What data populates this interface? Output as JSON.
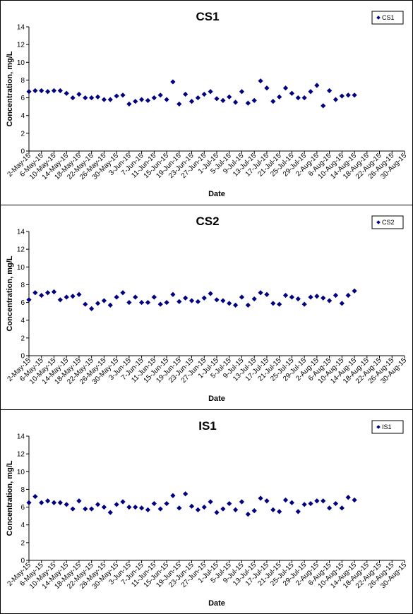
{
  "chart_data": [
    {
      "type": "scatter",
      "title": "CS1",
      "xlabel": "Date",
      "ylabel": "Concentration, mg/L",
      "ylim": [
        0,
        14
      ],
      "yticks": [
        0,
        2,
        4,
        6,
        8,
        10,
        12,
        14
      ],
      "grid": false,
      "legend_position": "top-right",
      "x_tick_labels": [
        "2-May-15",
        "6-May-15",
        "10-May-15",
        "14-May-15",
        "18-May-15",
        "22-May-15",
        "26-May-15",
        "30-May-15",
        "3-Jun-15",
        "7-Jun-15",
        "11-Jun-15",
        "15-Jun-15",
        "19-Jun-15",
        "23-Jun-15",
        "27-Jun-15",
        "1-Jul-15",
        "5-Jul-15",
        "9-Jul-15",
        "13-Jul-15",
        "17-Jul-15",
        "21-Jul-15",
        "25-Jul-15",
        "29-Jul-15",
        "2-Aug-15",
        "6-Aug-15",
        "10-Aug-15",
        "14-Aug-15",
        "18-Aug-15",
        "22-Aug-15",
        "26-Aug-15",
        "30-Aug-15"
      ],
      "series": [
        {
          "name": "CS1",
          "color": "#000080",
          "points": [
            [
              "2-May-15",
              6.7
            ],
            [
              "4-May-15",
              6.8
            ],
            [
              "6-May-15",
              6.8
            ],
            [
              "8-May-15",
              6.7
            ],
            [
              "10-May-15",
              6.8
            ],
            [
              "12-May-15",
              6.8
            ],
            [
              "14-May-15",
              6.5
            ],
            [
              "16-May-15",
              6.0
            ],
            [
              "18-May-15",
              6.4
            ],
            [
              "20-May-15",
              6.0
            ],
            [
              "22-May-15",
              6.0
            ],
            [
              "24-May-15",
              6.1
            ],
            [
              "26-May-15",
              5.8
            ],
            [
              "28-May-15",
              5.8
            ],
            [
              "30-May-15",
              6.2
            ],
            [
              "1-Jun-15",
              6.3
            ],
            [
              "3-Jun-15",
              5.3
            ],
            [
              "5-Jun-15",
              5.6
            ],
            [
              "7-Jun-15",
              5.8
            ],
            [
              "9-Jun-15",
              5.7
            ],
            [
              "11-Jun-15",
              6.0
            ],
            [
              "13-Jun-15",
              6.3
            ],
            [
              "15-Jun-15",
              5.8
            ],
            [
              "17-Jun-15",
              7.8
            ],
            [
              "19-Jun-15",
              5.3
            ],
            [
              "21-Jun-15",
              6.4
            ],
            [
              "23-Jun-15",
              5.6
            ],
            [
              "25-Jun-15",
              6.0
            ],
            [
              "27-Jun-15",
              6.4
            ],
            [
              "29-Jun-15",
              6.7
            ],
            [
              "1-Jul-15",
              5.9
            ],
            [
              "3-Jul-15",
              5.7
            ],
            [
              "5-Jul-15",
              6.1
            ],
            [
              "7-Jul-15",
              5.5
            ],
            [
              "9-Jul-15",
              6.7
            ],
            [
              "11-Jul-15",
              5.4
            ],
            [
              "13-Jul-15",
              5.7
            ],
            [
              "15-Jul-15",
              7.9
            ],
            [
              "17-Jul-15",
              7.1
            ],
            [
              "19-Jul-15",
              5.6
            ],
            [
              "21-Jul-15",
              6.1
            ],
            [
              "23-Jul-15",
              7.1
            ],
            [
              "25-Jul-15",
              6.5
            ],
            [
              "27-Jul-15",
              6.0
            ],
            [
              "29-Jul-15",
              6.0
            ],
            [
              "31-Jul-15",
              6.7
            ],
            [
              "2-Aug-15",
              7.4
            ],
            [
              "4-Aug-15",
              5.1
            ],
            [
              "6-Aug-15",
              6.8
            ],
            [
              "8-Aug-15",
              5.8
            ],
            [
              "10-Aug-15",
              6.2
            ],
            [
              "12-Aug-15",
              6.3
            ],
            [
              "14-Aug-15",
              6.3
            ]
          ]
        }
      ]
    },
    {
      "type": "scatter",
      "title": "CS2",
      "xlabel": "Date",
      "ylabel": "Concentration, mg/L",
      "ylim": [
        0,
        14
      ],
      "yticks": [
        0,
        2,
        4,
        6,
        8,
        10,
        12,
        14
      ],
      "grid": false,
      "legend_position": "top-right",
      "x_tick_labels": [
        "2-May-15",
        "6-May-15",
        "10-May-15",
        "14-May-15",
        "18-May-15",
        "22-May-15",
        "26-May-15",
        "30-May-15",
        "3-Jun-15",
        "7-Jun-15",
        "11-Jun-15",
        "15-Jun-15",
        "19-Jun-15",
        "23-Jun-15",
        "27-Jun-15",
        "1-Jul-15",
        "5-Jul-15",
        "9-Jul-15",
        "13-Jul-15",
        "17-Jul-15",
        "21-Jul-15",
        "25-Jul-15",
        "29-Jul-15",
        "2-Aug-15",
        "6-Aug-15",
        "10-Aug-15",
        "14-Aug-15",
        "18-Aug-15",
        "22-Aug-15",
        "26-Aug-15",
        "30-Aug-15"
      ],
      "series": [
        {
          "name": "CS2",
          "color": "#000080",
          "points": [
            [
              "2-May-15",
              6.3
            ],
            [
              "4-May-15",
              7.1
            ],
            [
              "6-May-15",
              6.8
            ],
            [
              "8-May-15",
              7.1
            ],
            [
              "10-May-15",
              7.2
            ],
            [
              "12-May-15",
              6.3
            ],
            [
              "14-May-15",
              6.6
            ],
            [
              "16-May-15",
              6.7
            ],
            [
              "18-May-15",
              6.9
            ],
            [
              "20-May-15",
              5.8
            ],
            [
              "22-May-15",
              5.3
            ],
            [
              "24-May-15",
              5.9
            ],
            [
              "26-May-15",
              6.2
            ],
            [
              "28-May-15",
              5.7
            ],
            [
              "30-May-15",
              6.6
            ],
            [
              "1-Jun-15",
              7.1
            ],
            [
              "3-Jun-15",
              6.0
            ],
            [
              "5-Jun-15",
              6.6
            ],
            [
              "7-Jun-15",
              6.0
            ],
            [
              "9-Jun-15",
              6.0
            ],
            [
              "11-Jun-15",
              6.6
            ],
            [
              "13-Jun-15",
              5.8
            ],
            [
              "15-Jun-15",
              6.0
            ],
            [
              "17-Jun-15",
              6.9
            ],
            [
              "19-Jun-15",
              6.1
            ],
            [
              "21-Jun-15",
              6.5
            ],
            [
              "23-Jun-15",
              6.2
            ],
            [
              "25-Jun-15",
              6.1
            ],
            [
              "27-Jun-15",
              6.5
            ],
            [
              "29-Jun-15",
              7.0
            ],
            [
              "1-Jul-15",
              6.3
            ],
            [
              "3-Jul-15",
              6.2
            ],
            [
              "5-Jul-15",
              5.9
            ],
            [
              "7-Jul-15",
              5.7
            ],
            [
              "9-Jul-15",
              6.6
            ],
            [
              "11-Jul-15",
              5.7
            ],
            [
              "13-Jul-15",
              6.4
            ],
            [
              "15-Jul-15",
              7.1
            ],
            [
              "17-Jul-15",
              6.9
            ],
            [
              "19-Jul-15",
              5.9
            ],
            [
              "21-Jul-15",
              5.8
            ],
            [
              "23-Jul-15",
              6.8
            ],
            [
              "25-Jul-15",
              6.6
            ],
            [
              "27-Jul-15",
              6.4
            ],
            [
              "29-Jul-15",
              5.8
            ],
            [
              "31-Jul-15",
              6.6
            ],
            [
              "2-Aug-15",
              6.7
            ],
            [
              "4-Aug-15",
              6.5
            ],
            [
              "6-Aug-15",
              6.2
            ],
            [
              "8-Aug-15",
              6.8
            ],
            [
              "10-Aug-15",
              5.9
            ],
            [
              "12-Aug-15",
              6.8
            ],
            [
              "14-Aug-15",
              7.3
            ]
          ]
        }
      ]
    },
    {
      "type": "scatter",
      "title": "IS1",
      "xlabel": "Date",
      "ylabel": "Concentration, mg/L",
      "ylim": [
        0,
        14
      ],
      "yticks": [
        0,
        2,
        4,
        6,
        8,
        10,
        12,
        14
      ],
      "grid": false,
      "legend_position": "top-right",
      "x_tick_labels": [
        "2-May-15",
        "6-May-15",
        "10-May-15",
        "14-May-15",
        "18-May-15",
        "22-May-15",
        "26-May-15",
        "30-May-15",
        "3-Jun-15",
        "7-Jun-15",
        "11-Jun-15",
        "15-Jun-15",
        "19-Jun-15",
        "23-Jun-15",
        "27-Jun-15",
        "1-Jul-15",
        "5-Jul-15",
        "9-Jul-15",
        "13-Jul-15",
        "17-Jul-15",
        "21-Jul-15",
        "25-Jul-15",
        "29-Jul-15",
        "2-Aug-15",
        "6-Aug-15",
        "10-Aug-15",
        "14-Aug-15",
        "18-Aug-15",
        "22-Aug-15",
        "26-Aug-15",
        "30-Aug-15"
      ],
      "series": [
        {
          "name": "IS1",
          "color": "#000080",
          "points": [
            [
              "2-May-15",
              6.5
            ],
            [
              "4-May-15",
              7.2
            ],
            [
              "6-May-15",
              6.5
            ],
            [
              "8-May-15",
              6.7
            ],
            [
              "10-May-15",
              6.5
            ],
            [
              "12-May-15",
              6.5
            ],
            [
              "14-May-15",
              6.3
            ],
            [
              "16-May-15",
              5.8
            ],
            [
              "18-May-15",
              6.7
            ],
            [
              "20-May-15",
              5.8
            ],
            [
              "22-May-15",
              5.8
            ],
            [
              "24-May-15",
              6.3
            ],
            [
              "26-May-15",
              6.0
            ],
            [
              "28-May-15",
              5.4
            ],
            [
              "30-May-15",
              6.3
            ],
            [
              "1-Jun-15",
              6.6
            ],
            [
              "3-Jun-15",
              6.0
            ],
            [
              "5-Jun-15",
              6.0
            ],
            [
              "7-Jun-15",
              5.9
            ],
            [
              "9-Jun-15",
              5.7
            ],
            [
              "11-Jun-15",
              6.4
            ],
            [
              "13-Jun-15",
              5.8
            ],
            [
              "15-Jun-15",
              6.4
            ],
            [
              "17-Jun-15",
              7.3
            ],
            [
              "19-Jun-15",
              5.9
            ],
            [
              "21-Jun-15",
              7.5
            ],
            [
              "23-Jun-15",
              6.1
            ],
            [
              "25-Jun-15",
              5.7
            ],
            [
              "27-Jun-15",
              6.0
            ],
            [
              "29-Jun-15",
              6.6
            ],
            [
              "1-Jul-15",
              5.4
            ],
            [
              "3-Jul-15",
              5.8
            ],
            [
              "5-Jul-15",
              6.4
            ],
            [
              "7-Jul-15",
              5.7
            ],
            [
              "9-Jul-15",
              6.6
            ],
            [
              "11-Jul-15",
              5.2
            ],
            [
              "13-Jul-15",
              5.6
            ],
            [
              "15-Jul-15",
              7.0
            ],
            [
              "17-Jul-15",
              6.7
            ],
            [
              "19-Jul-15",
              5.7
            ],
            [
              "21-Jul-15",
              5.5
            ],
            [
              "23-Jul-15",
              6.8
            ],
            [
              "25-Jul-15",
              6.5
            ],
            [
              "27-Jul-15",
              5.5
            ],
            [
              "29-Jul-15",
              6.3
            ],
            [
              "31-Jul-15",
              6.4
            ],
            [
              "2-Aug-15",
              6.7
            ],
            [
              "4-Aug-15",
              6.7
            ],
            [
              "6-Aug-15",
              5.9
            ],
            [
              "8-Aug-15",
              6.4
            ],
            [
              "10-Aug-15",
              5.9
            ],
            [
              "12-Aug-15",
              7.1
            ],
            [
              "14-Aug-15",
              6.8
            ]
          ]
        }
      ]
    }
  ]
}
